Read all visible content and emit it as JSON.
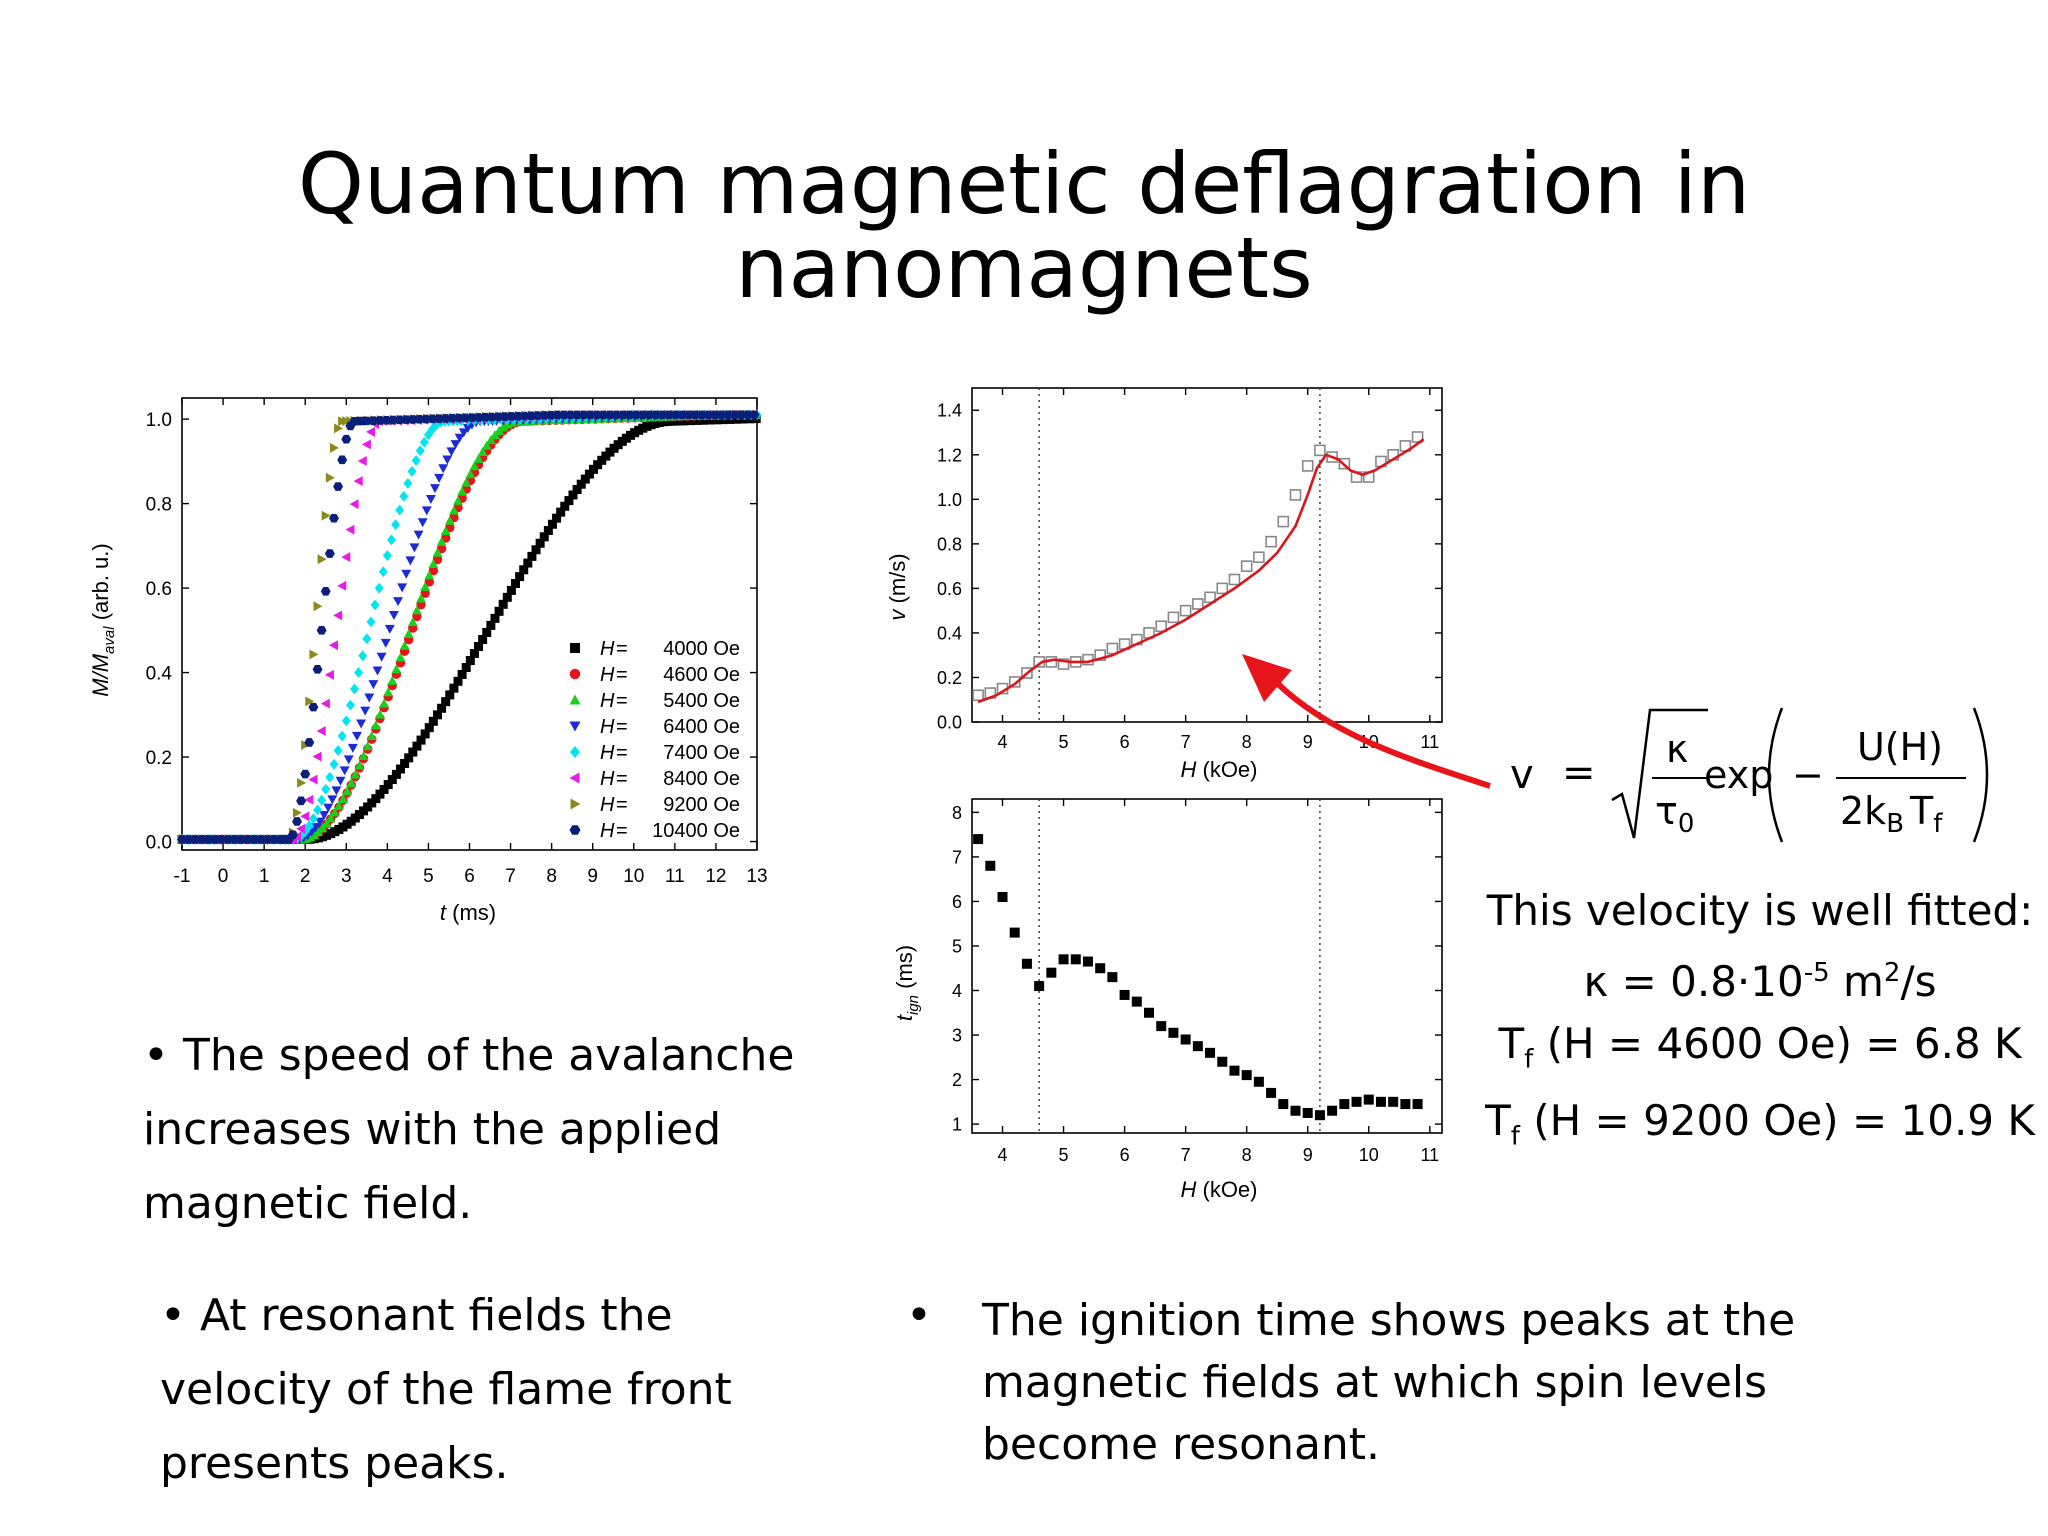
{
  "title": "Quantum magnetic deflagration in nanomagnets",
  "charts": {
    "magnetization": {
      "xlabel_italic": "t",
      "xlabel_rest": " (ms)",
      "ylabel_main": "M/M",
      "ylabel_sub": "aval",
      "ylabel_rest": " (arb. u.)"
    },
    "velocity": {
      "xlabel_italic": "H",
      "xlabel_rest": " (kOe)",
      "ylabel_italic": "v",
      "ylabel_rest": " (m/s)"
    },
    "ignition": {
      "xlabel_italic": "H",
      "xlabel_rest": " (kOe)",
      "ylabel_main": "t",
      "ylabel_sub": "ign",
      "ylabel_rest": " (ms)"
    }
  },
  "chart_data": [
    {
      "type": "scatter",
      "xlabel": "t (ms)",
      "ylabel": "M/Maval (arb. u.)",
      "xlim": [
        -1,
        13
      ],
      "ylim": [
        -0.02,
        1.05
      ],
      "xticks": [
        -1,
        0,
        1,
        2,
        3,
        4,
        5,
        6,
        7,
        8,
        9,
        10,
        11,
        12,
        13
      ],
      "yticks": [
        0.0,
        0.2,
        0.4,
        0.6,
        0.8,
        1.0
      ],
      "legend_position": "bottom-right",
      "series": [
        {
          "name": "4000 Oe",
          "H": "4000 Oe",
          "marker": "square",
          "color": "#000000",
          "t0": 2.0,
          "t1": 10.9
        },
        {
          "name": "4600 Oe",
          "H": "4600 Oe",
          "marker": "circle",
          "color": "#e8141b",
          "t0": 1.9,
          "t1": 7.3
        },
        {
          "name": "5400 Oe",
          "H": "5400 Oe",
          "marker": "triangle-up",
          "color": "#17d11d",
          "t0": 1.9,
          "t1": 7.2
        },
        {
          "name": "6400 Oe",
          "H": "6400 Oe",
          "marker": "triangle-down",
          "color": "#1b2bd6",
          "t0": 1.8,
          "t1": 6.3
        },
        {
          "name": "7400 Oe",
          "H": "7400 Oe",
          "marker": "diamond",
          "color": "#00e5f0",
          "t0": 1.7,
          "t1": 5.4
        },
        {
          "name": "8400 Oe",
          "H": "8400 Oe",
          "marker": "triangle-left",
          "color": "#e61be6",
          "t0": 1.7,
          "t1": 3.8
        },
        {
          "name": "9200 Oe",
          "H": "9200 Oe",
          "marker": "triangle-right",
          "color": "#8c8a1e",
          "t0": 1.6,
          "t1": 2.9
        },
        {
          "name": "10400 Oe",
          "H": "10400 Oe",
          "marker": "hexagon",
          "color": "#0a1f7a",
          "t0": 1.6,
          "t1": 3.2
        }
      ]
    },
    {
      "type": "scatter",
      "xlabel": "H (kOe)",
      "ylabel": "v (m/s)",
      "xlim": [
        3.5,
        11.2
      ],
      "ylim": [
        0.0,
        1.5
      ],
      "xticks": [
        4,
        5,
        6,
        7,
        8,
        9,
        10,
        11
      ],
      "yticks": [
        0.0,
        0.2,
        0.4,
        0.6,
        0.8,
        1.0,
        1.2,
        1.4
      ],
      "vlines": [
        4.6,
        9.2
      ],
      "points_x": [
        3.6,
        3.8,
        4.0,
        4.2,
        4.4,
        4.6,
        4.8,
        5.0,
        5.2,
        5.4,
        5.6,
        5.8,
        6.0,
        6.2,
        6.4,
        6.6,
        6.8,
        7.0,
        7.2,
        7.4,
        7.6,
        7.8,
        8.0,
        8.2,
        8.4,
        8.6,
        8.8,
        9.0,
        9.2,
        9.4,
        9.6,
        9.8,
        10.0,
        10.2,
        10.4,
        10.6,
        10.8
      ],
      "points_y": [
        0.12,
        0.13,
        0.15,
        0.18,
        0.22,
        0.27,
        0.27,
        0.26,
        0.27,
        0.28,
        0.3,
        0.33,
        0.35,
        0.37,
        0.4,
        0.43,
        0.47,
        0.5,
        0.53,
        0.56,
        0.6,
        0.64,
        0.7,
        0.74,
        0.81,
        0.9,
        1.02,
        1.15,
        1.22,
        1.19,
        1.16,
        1.1,
        1.1,
        1.17,
        1.2,
        1.24,
        1.28
      ],
      "fit_x": [
        3.6,
        3.9,
        4.2,
        4.45,
        4.65,
        4.85,
        5.1,
        5.4,
        5.8,
        6.2,
        6.6,
        7.0,
        7.4,
        7.8,
        8.2,
        8.5,
        8.8,
        9.0,
        9.15,
        9.3,
        9.5,
        9.7,
        9.9,
        10.1,
        10.4,
        10.7,
        10.9
      ],
      "fit_y": [
        0.09,
        0.12,
        0.17,
        0.23,
        0.27,
        0.28,
        0.27,
        0.27,
        0.3,
        0.35,
        0.4,
        0.46,
        0.53,
        0.6,
        0.68,
        0.76,
        0.88,
        1.02,
        1.14,
        1.2,
        1.18,
        1.13,
        1.11,
        1.13,
        1.18,
        1.23,
        1.27
      ],
      "fit_color": "#d9161c",
      "marker": "open-square",
      "marker_color": "#888888"
    },
    {
      "type": "scatter",
      "xlabel": "H (kOe)",
      "ylabel": "t_ign (ms)",
      "xlim": [
        3.5,
        11.2
      ],
      "ylim": [
        0.8,
        8.3
      ],
      "xticks": [
        4,
        5,
        6,
        7,
        8,
        9,
        10,
        11
      ],
      "yticks": [
        1,
        2,
        3,
        4,
        5,
        6,
        7,
        8
      ],
      "vlines": [
        4.6,
        9.2
      ],
      "points_x": [
        3.6,
        3.8,
        4.0,
        4.2,
        4.4,
        4.6,
        4.8,
        5.0,
        5.2,
        5.4,
        5.6,
        5.8,
        6.0,
        6.2,
        6.4,
        6.6,
        6.8,
        7.0,
        7.2,
        7.4,
        7.6,
        7.8,
        8.0,
        8.2,
        8.4,
        8.6,
        8.8,
        9.0,
        9.2,
        9.4,
        9.6,
        9.8,
        10.0,
        10.2,
        10.4,
        10.6,
        10.8
      ],
      "points_y": [
        7.4,
        6.8,
        6.1,
        5.3,
        4.6,
        4.1,
        4.4,
        4.7,
        4.7,
        4.65,
        4.5,
        4.3,
        3.9,
        3.75,
        3.5,
        3.2,
        3.05,
        2.9,
        2.75,
        2.6,
        2.4,
        2.2,
        2.1,
        1.95,
        1.7,
        1.45,
        1.3,
        1.25,
        1.2,
        1.3,
        1.45,
        1.5,
        1.55,
        1.5,
        1.5,
        1.45,
        1.45
      ],
      "marker": "filled-square",
      "marker_color": "#000000"
    }
  ],
  "formula": {
    "lhs": "v",
    "eq": "=",
    "kappa": "κ",
    "tau": "τ",
    "tau_sub": "0",
    "exp": "exp",
    "minus": "−",
    "numer": "U(H)",
    "denom_a": "2k",
    "denom_b_sub": "B",
    "denom_c": "T",
    "denom_c_sub": "f"
  },
  "fit": {
    "line1": "This velocity is well fitted:",
    "kappa_pre": "κ = 0.8·10",
    "kappa_exp": "-5",
    "kappa_unit_pre": " m",
    "kappa_unit_exp": "2",
    "kappa_unit_post": "/s",
    "t1_T": "T",
    "t1_sub": "f",
    "t1_rest": " (H = 4600 Oe) = 6.8 K",
    "t2_T": "T",
    "t2_sub": "f",
    "t2_rest": " (H = 9200 Oe) = 10.9 K"
  },
  "bullets": {
    "b1_line1": "• The speed of the avalanche",
    "b1_line2": "increases with the applied",
    "b1_line3": "magnetic field.",
    "b2_line1": "• At resonant fields the",
    "b2_line2": "velocity of the flame front",
    "b2_line3": "presents peaks.",
    "b3_dot": "•",
    "b3_line1": "The ignition time shows peaks at the",
    "b3_line2": "magnetic fields at which spin levels",
    "b3_line3": "become resonant."
  },
  "colors": {
    "arrow": "#e8141b",
    "fit_line": "#d9161c"
  }
}
